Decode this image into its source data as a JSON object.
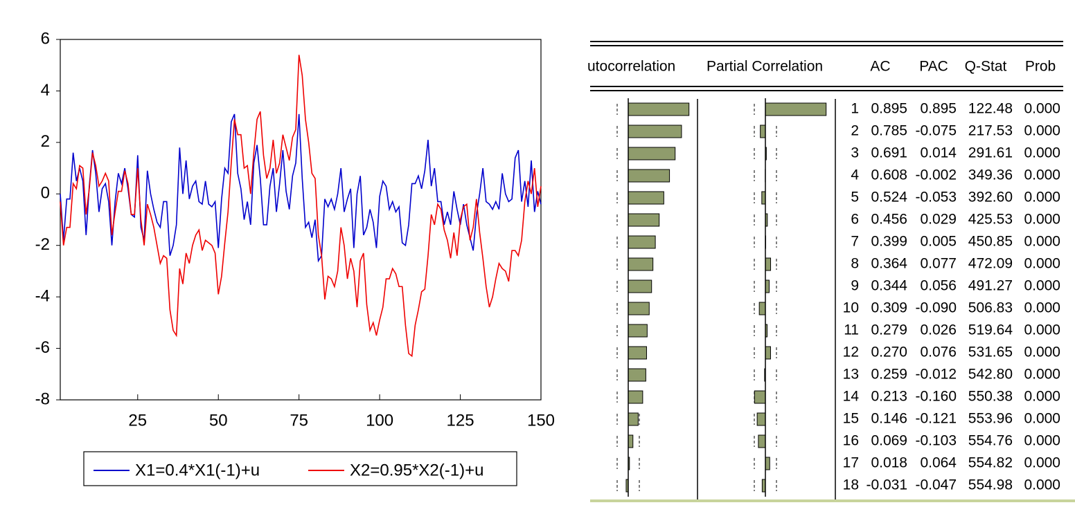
{
  "chart_data": [
    {
      "type": "line",
      "x": [
        1,
        2,
        3,
        4,
        5,
        6,
        7,
        8,
        9,
        10,
        11,
        12,
        13,
        14,
        15,
        16,
        17,
        18,
        19,
        20,
        21,
        22,
        23,
        24,
        25,
        26,
        27,
        28,
        29,
        30,
        31,
        32,
        33,
        34,
        35,
        36,
        37,
        38,
        39,
        40,
        41,
        42,
        43,
        44,
        45,
        46,
        47,
        48,
        49,
        50,
        51,
        52,
        53,
        54,
        55,
        56,
        57,
        58,
        59,
        60,
        61,
        62,
        63,
        64,
        65,
        66,
        67,
        68,
        69,
        70,
        71,
        72,
        73,
        74,
        75,
        76,
        77,
        78,
        79,
        80,
        81,
        82,
        83,
        84,
        85,
        86,
        87,
        88,
        89,
        90,
        91,
        92,
        93,
        94,
        95,
        96,
        97,
        98,
        99,
        100,
        101,
        102,
        103,
        104,
        105,
        106,
        107,
        108,
        109,
        110,
        111,
        112,
        113,
        114,
        115,
        116,
        117,
        118,
        119,
        120,
        121,
        122,
        123,
        124,
        125,
        126,
        127,
        128,
        129,
        130,
        131,
        132,
        133,
        134,
        135,
        136,
        137,
        138,
        139,
        140,
        141,
        142,
        143,
        144,
        145,
        146,
        147,
        148,
        149,
        150
      ],
      "series": [
        {
          "name": "X1=0.4*X1(-1)+u",
          "color": "#0000cc",
          "values": [
            0.0,
            -1.8,
            -0.2,
            -0.2,
            1.6,
            0.5,
            1.0,
            0.5,
            -1.6,
            0.3,
            1.7,
            0.8,
            -0.7,
            0.2,
            0.4,
            -0.3,
            -2.0,
            -0.3,
            0.8,
            0.4,
            1.0,
            0.2,
            -0.8,
            -0.9,
            1.5,
            -1.3,
            -1.8,
            0.9,
            0.0,
            -0.6,
            -1.1,
            -1.3,
            -0.3,
            -0.3,
            -2.4,
            -2.0,
            -1.2,
            1.8,
            0.0,
            1.3,
            -0.2,
            0.3,
            0.5,
            -0.3,
            -0.4,
            0.5,
            -0.4,
            -0.5,
            -0.3,
            -2.1,
            -0.2,
            1.0,
            0.8,
            2.8,
            3.1,
            0.8,
            0.2,
            -1.0,
            -0.3,
            -1.2,
            1.2,
            1.9,
            0.6,
            -1.2,
            -1.2,
            0.3,
            1.0,
            -0.7,
            0.4,
            1.7,
            0.1,
            -0.6,
            0.7,
            1.2,
            3.1,
            0.6,
            -1.3,
            -1.1,
            -1.7,
            -1.0,
            -2.6,
            -2.4,
            -0.2,
            -0.5,
            -0.2,
            -0.6,
            0.0,
            1.0,
            -0.7,
            -0.2,
            0.2,
            -2.1,
            0.0,
            0.7,
            -1.6,
            -1.3,
            -0.6,
            -1.1,
            -2.1,
            -0.1,
            0.5,
            0.3,
            -0.6,
            -0.3,
            -0.7,
            -0.5,
            -1.9,
            -2.0,
            -1.2,
            0.4,
            0.4,
            0.7,
            0.2,
            0.9,
            2.1,
            0.3,
            1.0,
            -0.3,
            -0.3,
            -1.2,
            -0.7,
            -1.2,
            0.1,
            -0.6,
            -1.2,
            -0.4,
            -1.2,
            -1.7,
            -2.2,
            -0.8,
            0.0,
            1.0,
            -0.3,
            -0.4,
            -0.6,
            -0.3,
            -0.6,
            0.8,
            0.0,
            -0.3,
            -0.2,
            1.4,
            1.7,
            -0.3,
            0.5,
            -0.5,
            1.3,
            -0.7,
            0.1,
            -0.4
          ]
        },
        {
          "name": "X2=0.95*X2(-1)+u",
          "color": "#ee0000",
          "values": [
            -0.3,
            -2.0,
            -1.3,
            -1.3,
            0.4,
            0.2,
            1.1,
            1.0,
            -0.8,
            0.2,
            1.6,
            1.1,
            0.3,
            0.5,
            0.8,
            0.5,
            -1.6,
            -0.7,
            0.1,
            0.1,
            0.9,
            0.4,
            -0.8,
            -0.8,
            1.0,
            -1.0,
            -2.0,
            -0.4,
            -0.8,
            -1.3,
            -2.0,
            -2.7,
            -2.4,
            -2.5,
            -4.5,
            -5.3,
            -5.5,
            -2.9,
            -3.5,
            -2.3,
            -2.7,
            -2.0,
            -1.6,
            -1.4,
            -2.2,
            -1.8,
            -1.9,
            -2.0,
            -2.3,
            -3.9,
            -3.2,
            -1.9,
            -0.7,
            1.2,
            2.9,
            2.3,
            2.3,
            1.0,
            1.1,
            0.0,
            1.6,
            2.9,
            3.2,
            1.5,
            0.6,
            1.0,
            2.1,
            0.8,
            1.2,
            2.3,
            1.8,
            1.3,
            2.2,
            2.5,
            5.4,
            4.6,
            2.9,
            2.0,
            0.8,
            0.6,
            -1.6,
            -2.4,
            -4.1,
            -3.2,
            -3.3,
            -3.6,
            -3.0,
            -1.3,
            -2.0,
            -3.3,
            -2.5,
            -3.0,
            -4.4,
            -2.6,
            -2.3,
            -4.3,
            -5.3,
            -5.0,
            -5.5,
            -4.9,
            -4.4,
            -3.3,
            -3.3,
            -2.9,
            -3.1,
            -3.6,
            -3.6,
            -5.1,
            -6.2,
            -6.3,
            -5.1,
            -4.5,
            -3.8,
            -3.7,
            -2.4,
            -0.8,
            -1.2,
            -0.4,
            -0.6,
            -1.4,
            -1.8,
            -2.5,
            -1.5,
            -2.4,
            -1.0,
            -0.5,
            -0.4,
            -1.8,
            -1.3,
            -0.2,
            -1.5,
            -2.5,
            -3.6,
            -4.4,
            -4.0,
            -3.3,
            -2.7,
            -2.9,
            -3.0,
            -3.4,
            -2.2,
            -2.2,
            -2.4,
            -1.8,
            -0.3,
            0.5,
            0.0,
            1.0,
            -0.5,
            0.3
          ]
        }
      ],
      "xlim": [
        1,
        150
      ],
      "xticks": [
        25,
        50,
        75,
        100,
        125,
        150
      ],
      "ylim": [
        -8,
        6
      ],
      "yticks": [
        -8,
        -6,
        -4,
        -2,
        0,
        2,
        4,
        6
      ],
      "grid": false,
      "legend": "bottom"
    },
    {
      "type": "correlogram",
      "column_titles": [
        "utocorrelation",
        "Partial Correlation"
      ],
      "color": "#8f9c6c",
      "categories": [
        "1",
        "2",
        "3",
        "4",
        "5",
        "6",
        "7",
        "8",
        "9",
        "10",
        "11",
        "12",
        "13",
        "14",
        "15",
        "16",
        "17",
        "18"
      ],
      "series": [
        {
          "name": "AC",
          "values": [
            0.895,
            0.785,
            0.691,
            0.608,
            0.524,
            0.456,
            0.399,
            0.364,
            0.344,
            0.309,
            0.279,
            0.27,
            0.259,
            0.213,
            0.146,
            0.069,
            0.018,
            -0.031
          ],
          "value_labels": [
            "0.895",
            "0.785",
            "0.691",
            "0.608",
            "0.524",
            "0.456",
            "0.399",
            "0.364",
            "0.344",
            "0.309",
            "0.279",
            "0.270",
            "0.259",
            "0.213",
            "0.146",
            "0.069",
            "0.018",
            "-0.031"
          ]
        },
        {
          "name": "PAC",
          "values": [
            0.895,
            -0.075,
            0.014,
            -0.002,
            -0.053,
            0.029,
            0.005,
            0.077,
            0.056,
            -0.09,
            0.026,
            0.076,
            -0.012,
            -0.16,
            -0.121,
            -0.103,
            0.064,
            -0.047
          ],
          "value_labels": [
            "0.895",
            "-0.075",
            "0.014",
            "-0.002",
            "-0.053",
            "0.029",
            "0.005",
            "0.077",
            "0.056",
            "-0.090",
            "0.026",
            "0.076",
            "-0.012",
            "-0.160",
            "-0.121",
            "-0.103",
            "0.064",
            "-0.047"
          ]
        },
        {
          "name": "Q-Stat",
          "values": [
            122.48,
            217.53,
            291.61,
            349.36,
            392.6,
            425.53,
            450.85,
            472.09,
            491.27,
            506.83,
            519.64,
            531.65,
            542.8,
            550.38,
            553.96,
            554.76,
            554.82,
            554.98
          ],
          "value_labels": [
            "122.48",
            "217.53",
            "291.61",
            "349.36",
            "392.60",
            "425.53",
            "450.85",
            "472.09",
            "491.27",
            "506.83",
            "519.64",
            "531.65",
            "542.80",
            "550.38",
            "553.96",
            "554.76",
            "554.82",
            "554.98"
          ]
        },
        {
          "name": "Prob",
          "values": [
            0,
            0,
            0,
            0,
            0,
            0,
            0,
            0,
            0,
            0,
            0,
            0,
            0,
            0,
            0,
            0,
            0,
            0
          ],
          "value_labels": [
            "0.000",
            "0.000",
            "0.000",
            "0.000",
            "0.000",
            "0.000",
            "0.000",
            "0.000",
            "0.000",
            "0.000",
            "0.000",
            "0.000",
            "0.000",
            "0.000",
            "0.000",
            "0.000",
            "0.000",
            "0.000"
          ]
        }
      ]
    }
  ]
}
